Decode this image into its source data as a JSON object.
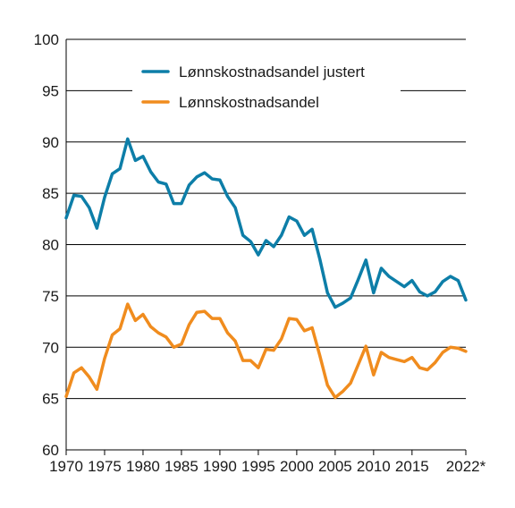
{
  "chart_data": {
    "type": "line",
    "title": "",
    "xlabel": "",
    "ylabel": "",
    "ylim": [
      60,
      100
    ],
    "xlim": [
      1970,
      2022
    ],
    "y_ticks": [
      "60",
      "65",
      "70",
      "75",
      "80",
      "85",
      "90",
      "95",
      "100"
    ],
    "x_ticks": [
      {
        "year": 1970,
        "label": "1970"
      },
      {
        "year": 1975,
        "label": "1975"
      },
      {
        "year": 1980,
        "label": "1980"
      },
      {
        "year": 1985,
        "label": "1985"
      },
      {
        "year": 1990,
        "label": "1990"
      },
      {
        "year": 1995,
        "label": "1995"
      },
      {
        "year": 2000,
        "label": "2000"
      },
      {
        "year": 2005,
        "label": "2005"
      },
      {
        "year": 2010,
        "label": "2010"
      },
      {
        "year": 2015,
        "label": "2015"
      },
      {
        "year": 2022,
        "label": "2022*"
      }
    ],
    "grid": "horizontal",
    "legend_position": "top",
    "x": [
      1970,
      1971,
      1972,
      1973,
      1974,
      1975,
      1976,
      1977,
      1978,
      1979,
      1980,
      1981,
      1982,
      1983,
      1984,
      1985,
      1986,
      1987,
      1988,
      1989,
      1990,
      1991,
      1992,
      1993,
      1994,
      1995,
      1996,
      1997,
      1998,
      1999,
      2000,
      2001,
      2002,
      2003,
      2004,
      2005,
      2006,
      2007,
      2008,
      2009,
      2010,
      2011,
      2012,
      2013,
      2014,
      2015,
      2016,
      2017,
      2018,
      2019,
      2020,
      2021,
      2022
    ],
    "series": [
      {
        "name": "Lønnskostnadsandel justert",
        "color": "#0d7ea8",
        "values": [
          82.6,
          84.8,
          84.7,
          83.6,
          81.6,
          84.6,
          86.9,
          87.4,
          90.3,
          88.2,
          88.6,
          87.1,
          86.1,
          85.9,
          84.0,
          84.0,
          85.8,
          86.6,
          87.0,
          86.4,
          86.3,
          84.7,
          83.6,
          80.9,
          80.3,
          79.0,
          80.4,
          79.8,
          80.9,
          82.7,
          82.3,
          80.9,
          81.5,
          78.6,
          75.3,
          73.9,
          74.3,
          74.8,
          76.6,
          78.5,
          75.3,
          77.7,
          76.9,
          76.4,
          75.9,
          76.5,
          75.4,
          75.0,
          75.4,
          76.4,
          76.9,
          76.5,
          74.6
        ]
      },
      {
        "name": "Lønnskostnadsandel",
        "color": "#f08c1e",
        "values": [
          65.2,
          67.5,
          68.0,
          67.1,
          65.9,
          68.9,
          71.2,
          71.8,
          74.2,
          72.6,
          73.2,
          72.0,
          71.4,
          71.0,
          70.0,
          70.3,
          72.2,
          73.4,
          73.5,
          72.8,
          72.8,
          71.4,
          70.6,
          68.7,
          68.7,
          68.0,
          69.8,
          69.7,
          70.8,
          72.8,
          72.7,
          71.6,
          71.9,
          69.2,
          66.3,
          65.1,
          65.7,
          66.5,
          68.3,
          70.1,
          67.3,
          69.5,
          69.0,
          68.8,
          68.6,
          69.0,
          68.0,
          67.8,
          68.5,
          69.5,
          70.0,
          69.9,
          69.6
        ]
      }
    ]
  }
}
